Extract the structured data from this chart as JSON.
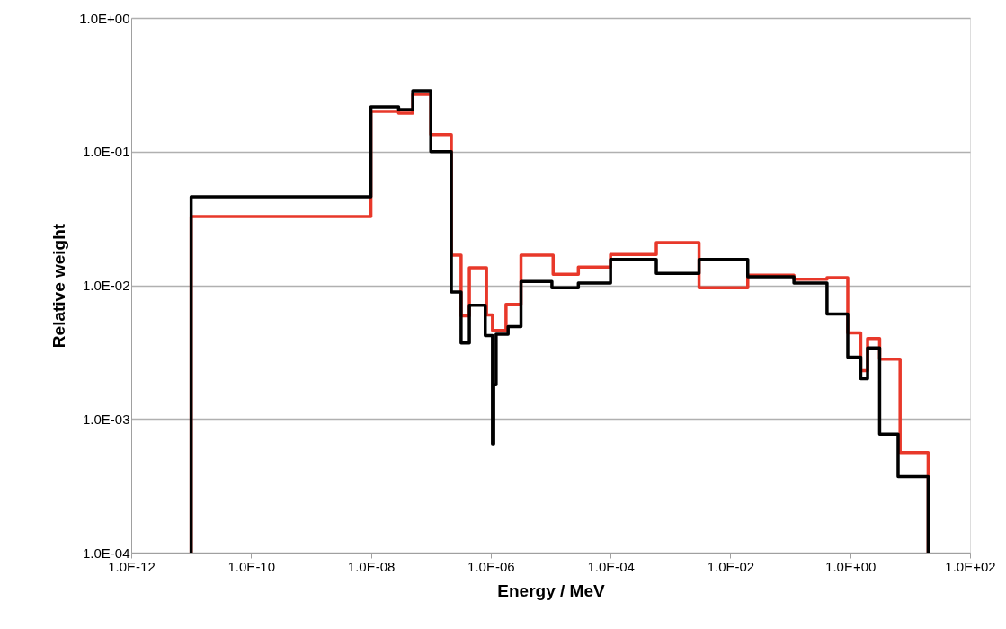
{
  "chart_data": {
    "type": "step",
    "xlabel": "Energy / MeV",
    "ylabel": "Relative weight",
    "log": "xy",
    "grid": "y",
    "line_style": "solid",
    "marker": "none",
    "xlim": [
      1e-12,
      100
    ],
    "ylim": [
      0.0001,
      1
    ],
    "xticks": [
      {
        "value": 1e-12,
        "label": "1.0E-12"
      },
      {
        "value": 1e-10,
        "label": "1.0E-10"
      },
      {
        "value": 1e-08,
        "label": "1.0E-08"
      },
      {
        "value": 1e-06,
        "label": "1.0E-06"
      },
      {
        "value": 0.0001,
        "label": "1.0E-04"
      },
      {
        "value": 0.01,
        "label": "1.0E-02"
      },
      {
        "value": 1,
        "label": "1.0E+00"
      },
      {
        "value": 100,
        "label": "1.0E+02"
      }
    ],
    "yticks": [
      {
        "value": 0.0001,
        "label": "1.0E-04"
      },
      {
        "value": 0.001,
        "label": "1.0E-03"
      },
      {
        "value": 0.01,
        "label": "1.0E-02"
      },
      {
        "value": 0.1,
        "label": "1.0E-01"
      },
      {
        "value": 1,
        "label": "1.0E+00"
      }
    ],
    "series": [
      {
        "color": "#e8382a",
        "x": [
          1e-11,
          1e-11,
          1e-08,
          2.9e-08,
          5e-08,
          1e-07,
          2.2e-07,
          3.2e-07,
          4.4e-07,
          8.5e-07,
          1.07e-06,
          1.8e-06,
          3.2e-06,
          1.1e-05,
          2.9e-05,
          0.0001,
          0.00058,
          0.003,
          0.0195,
          0.115,
          0.41,
          0.91,
          1.5,
          1.95,
          3.1,
          6.8,
          20
        ],
        "values": [
          0.0001,
          0.0327,
          0.2,
          0.194,
          0.268,
          0.134,
          0.0168,
          0.0059,
          0.0135,
          0.006,
          0.0046,
          0.0072,
          0.0168,
          0.0121,
          0.0137,
          0.017,
          0.0209,
          0.0096,
          0.0119,
          0.0111,
          0.0114,
          0.0044,
          0.0023,
          0.004,
          0.0028,
          0.00056,
          0.0001
        ]
      },
      {
        "color": "#000000",
        "x": [
          1e-11,
          1e-11,
          1e-08,
          2.9e-08,
          5e-08,
          1e-07,
          2.2e-07,
          3.2e-07,
          4.4e-07,
          8.1e-07,
          1.07e-06,
          1.12e-06,
          1.23e-06,
          1.95e-06,
          3.2e-06,
          1.05e-05,
          2.9e-05,
          0.0001,
          0.00058,
          0.003,
          0.0195,
          0.115,
          0.41,
          0.91,
          1.5,
          1.95,
          3.1,
          6.3,
          20
        ],
        "values": [
          0.0001,
          0.046,
          0.216,
          0.206,
          0.285,
          0.1,
          0.0089,
          0.0037,
          0.0071,
          0.0042,
          0.00065,
          0.0018,
          0.0043,
          0.0049,
          0.0107,
          0.0096,
          0.0104,
          0.0156,
          0.0123,
          0.0156,
          0.0116,
          0.0104,
          0.0061,
          0.0029,
          0.002,
          0.0034,
          0.00077,
          0.00037,
          0.0001
        ]
      }
    ]
  }
}
